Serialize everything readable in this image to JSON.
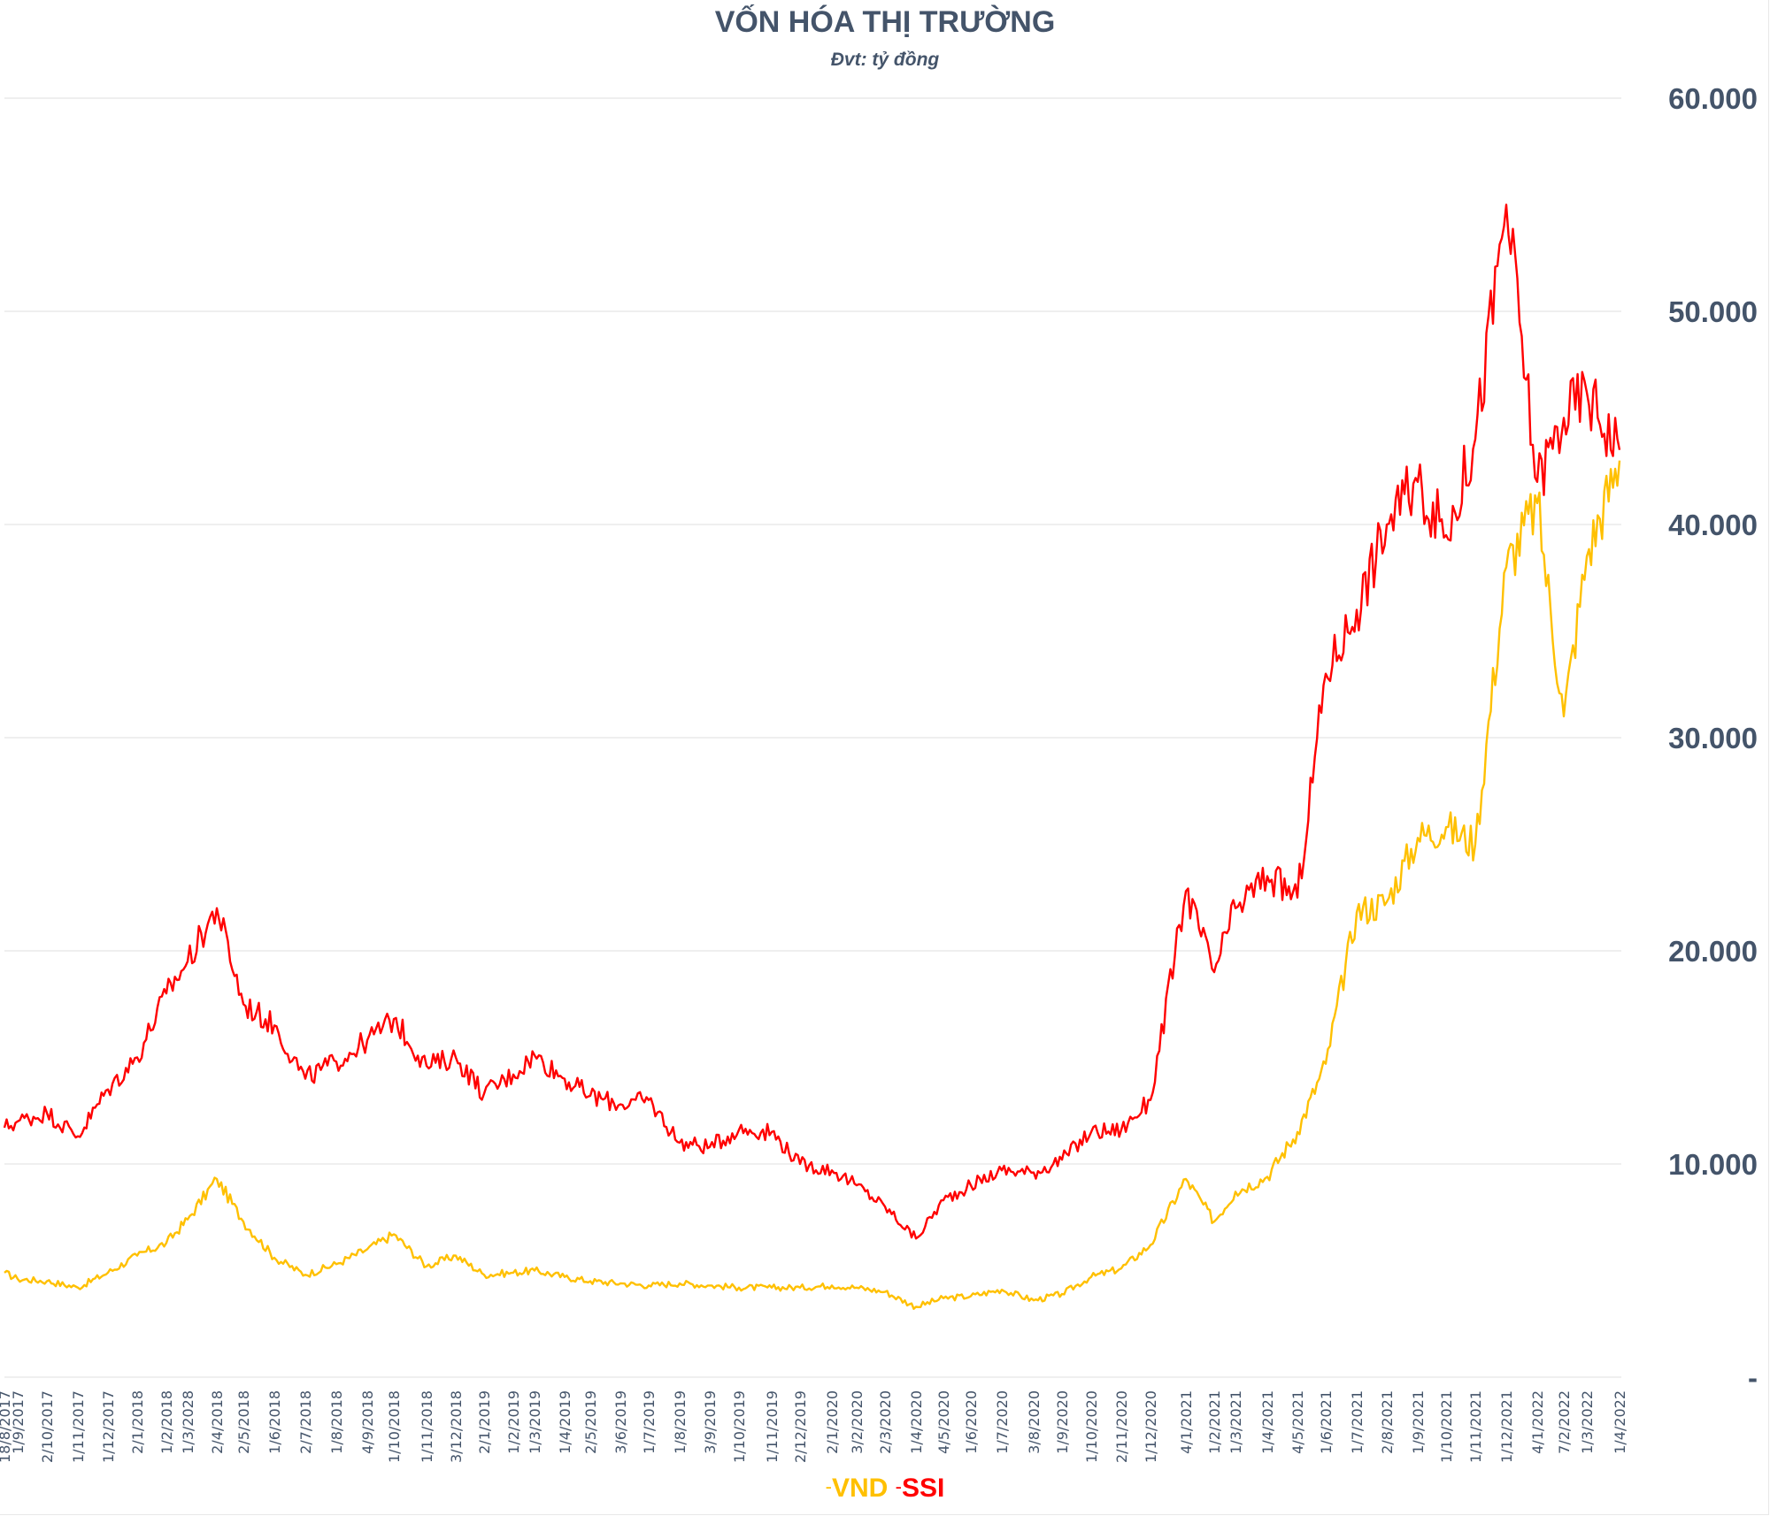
{
  "chart_data": {
    "type": "line",
    "title": "VỐN HÓA THỊ TRƯỜNG",
    "subtitle": "Đvt: tỷ đồng",
    "xlabel": "",
    "ylabel": "",
    "ylim": [
      0,
      60000
    ],
    "y_axis_position": "right",
    "yticks": [
      0,
      10000,
      20000,
      30000,
      40000,
      50000,
      60000
    ],
    "ytick_labels": [
      "-",
      "10.000",
      "20.000",
      "30.000",
      "40.000",
      "50.000",
      "60.000"
    ],
    "grid": true,
    "legend_position": "bottom-center",
    "categories": [
      "18/8/2017",
      "1/9/2017",
      "2/10/2017",
      "1/11/2017",
      "1/12/2017",
      "2/1/2018",
      "1/2/2018",
      "1/3/2028",
      "2/4/2018",
      "2/5/2018",
      "1/6/2018",
      "2/7/2018",
      "1/8/2018",
      "4/9/2018",
      "1/10/2018",
      "1/11/2018",
      "3/12/2018",
      "2/1/2019",
      "1/2/2019",
      "1/3/2019",
      "1/4/2019",
      "2/5/2019",
      "3/6/2019",
      "1/7/2019",
      "1/8/2019",
      "3/9/2019",
      "1/10/2019",
      "1/11/2019",
      "2/12/2019",
      "2/1/2020",
      "3/2/2020",
      "2/3/2020",
      "1/4/2020",
      "4/5/2020",
      "1/6/2020",
      "1/7/2020",
      "3/8/2020",
      "1/9/2020",
      "1/10/2020",
      "2/11/2020",
      "1/12/2020",
      "4/1/2021",
      "1/2/2021",
      "1/3/2021",
      "1/4/2021",
      "4/5/2021",
      "1/6/2021",
      "1/7/2021",
      "2/8/2021",
      "1/9/2021",
      "1/10/2021",
      "1/11/2021",
      "1/12/2021",
      "4/1/2022",
      "7/2/2022",
      "1/3/2022",
      "1/4/2022"
    ],
    "series": [
      {
        "name": "VND",
        "color": "#ffc000",
        "values": [
          4900,
          4600,
          4500,
          4200,
          4900,
          5700,
          6300,
          7400,
          9300,
          7300,
          5600,
          4800,
          5300,
          6000,
          6700,
          5200,
          5700,
          4800,
          4900,
          5000,
          4700,
          4500,
          4400,
          4300,
          4400,
          4300,
          4200,
          4200,
          4200,
          4300,
          4200,
          4000,
          3300,
          3700,
          3800,
          4100,
          3600,
          3900,
          4700,
          5100,
          6200,
          9300,
          7300,
          8700,
          9400,
          11500,
          14700,
          21800,
          22300,
          25300,
          25800,
          25000,
          38000,
          41000,
          31000,
          38500,
          43000
        ]
      },
      {
        "name": "SSI",
        "color": "#ff0000",
        "values": [
          11700,
          12000,
          12400,
          11300,
          13500,
          15000,
          18000,
          19500,
          22000,
          17500,
          16500,
          14000,
          14800,
          15800,
          16800,
          14600,
          15000,
          13300,
          14200,
          15100,
          14000,
          13200,
          12800,
          13000,
          11000,
          10800,
          11600,
          11500,
          10000,
          9700,
          9000,
          8000,
          6500,
          8300,
          9000,
          9700,
          9600,
          10200,
          11500,
          11600,
          13000,
          22800,
          19000,
          22000,
          23500,
          22500,
          33000,
          36000,
          40000,
          42000,
          39500,
          44000,
          55000,
          42000,
          45000,
          46200,
          43500
        ]
      }
    ]
  },
  "legend": {
    "items": [
      {
        "marker": "-",
        "label": "VND",
        "color": "#ffc000"
      },
      {
        "marker": "-",
        "label": "SSI",
        "color": "#ff0000"
      }
    ]
  }
}
